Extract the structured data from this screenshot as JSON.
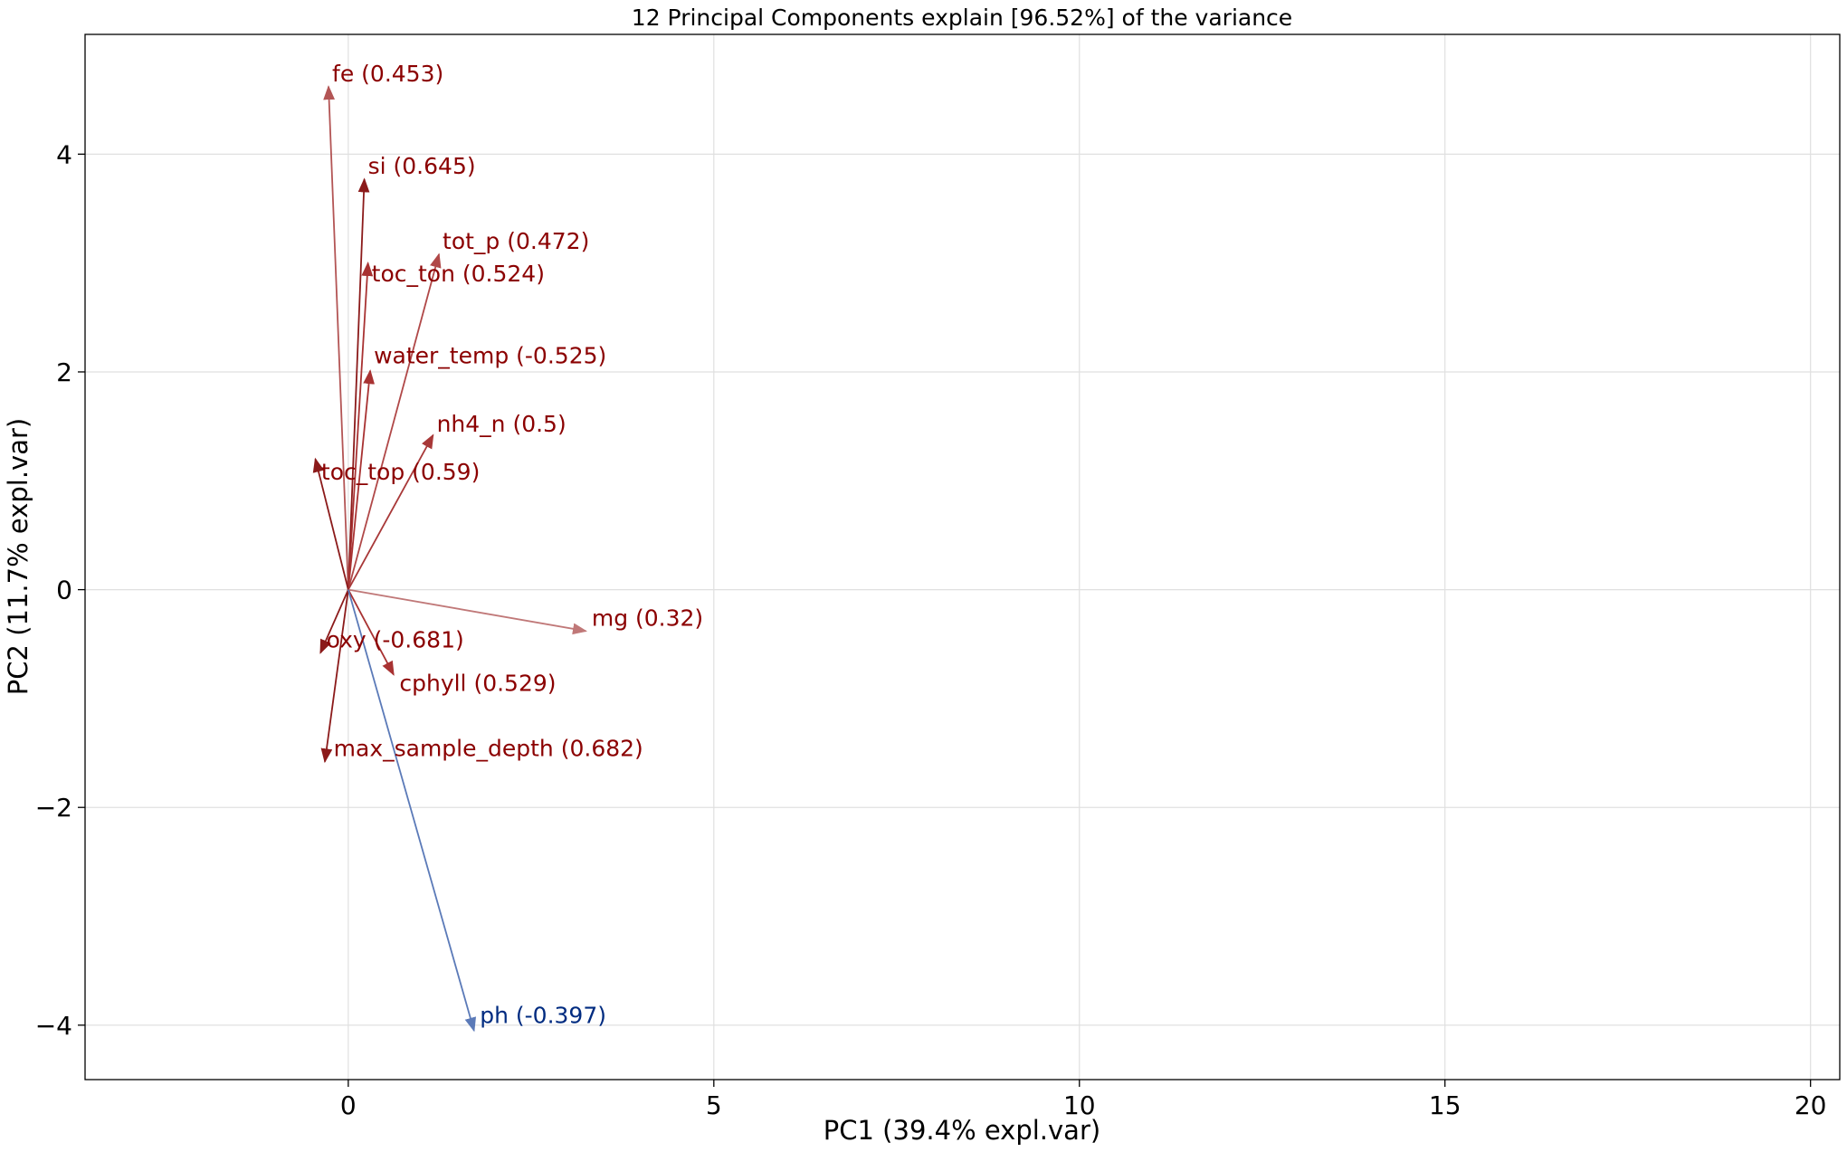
{
  "chart_data": {
    "type": "biplot",
    "title": "12 Principal Components explain [96.52%] of the variance",
    "xlabel": "PC1 (39.4% expl.var)",
    "ylabel": "PC2 (11.7% expl.var)",
    "xlim": [
      -3.6,
      20.4
    ],
    "ylim": [
      -4.5,
      5.1
    ],
    "xticks": [
      0,
      5,
      10,
      15,
      20
    ],
    "xtick_labels": [
      "0",
      "5",
      "10",
      "15",
      "20"
    ],
    "yticks": [
      -4,
      -2,
      0,
      2,
      4
    ],
    "ytick_labels": [
      "−4",
      "−2",
      "0",
      "2",
      "4"
    ],
    "grid": true,
    "origin": [
      0,
      0
    ],
    "vectors": [
      {
        "label": "fe (0.453)",
        "x": -0.27,
        "y": 4.62,
        "color": "#b35555",
        "label_x": -0.27,
        "label_y": 4.62
      },
      {
        "label": "si (0.645)",
        "x": 0.22,
        "y": 3.77,
        "color": "#8b1a1a",
        "label_x": 0.22,
        "label_y": 3.77
      },
      {
        "label": "tot_p (0.472)",
        "x": 1.24,
        "y": 3.08,
        "color": "#b04848",
        "label_x": 1.24,
        "label_y": 3.08
      },
      {
        "label": "toc_ton (0.524)",
        "x": 0.27,
        "y": 3.0,
        "color": "#a83232",
        "label_x": 0.27,
        "label_y": 2.78
      },
      {
        "label": "water_temp (-0.525)",
        "x": 0.3,
        "y": 2.01,
        "color": "#a83232",
        "label_x": 0.3,
        "label_y": 2.03
      },
      {
        "label": "nh4_n (0.5)",
        "x": 1.16,
        "y": 1.42,
        "color": "#a83838",
        "label_x": 1.16,
        "label_y": 1.4
      },
      {
        "label": "toc_top (0.59)",
        "x": -0.45,
        "y": 1.2,
        "color": "#8b1a1a",
        "label_x": -0.42,
        "label_y": 0.96
      },
      {
        "label": "mg (0.32)",
        "x": 3.25,
        "y": -0.38,
        "color": "#c07878",
        "label_x": 3.28,
        "label_y": -0.38
      },
      {
        "label": "oxy (-0.681)",
        "x": -0.38,
        "y": -0.58,
        "color": "#8b1a1a",
        "label_x": -0.35,
        "label_y": -0.58
      },
      {
        "label": "cphyll (0.529)",
        "x": 0.62,
        "y": -0.78,
        "color": "#a83232",
        "label_x": 0.65,
        "label_y": -0.98
      },
      {
        "label": "max_sample_depth (0.682)",
        "x": -0.32,
        "y": -1.58,
        "color": "#8b1a1a",
        "label_x": -0.25,
        "label_y": -1.58
      },
      {
        "label": "ph (-0.397)",
        "x": 1.72,
        "y": -4.05,
        "color": "#5b7ab8",
        "label_x": 1.75,
        "label_y": -4.03
      }
    ],
    "label_colors": {
      "positive": "#8b0000",
      "ph": "#002b80"
    }
  }
}
